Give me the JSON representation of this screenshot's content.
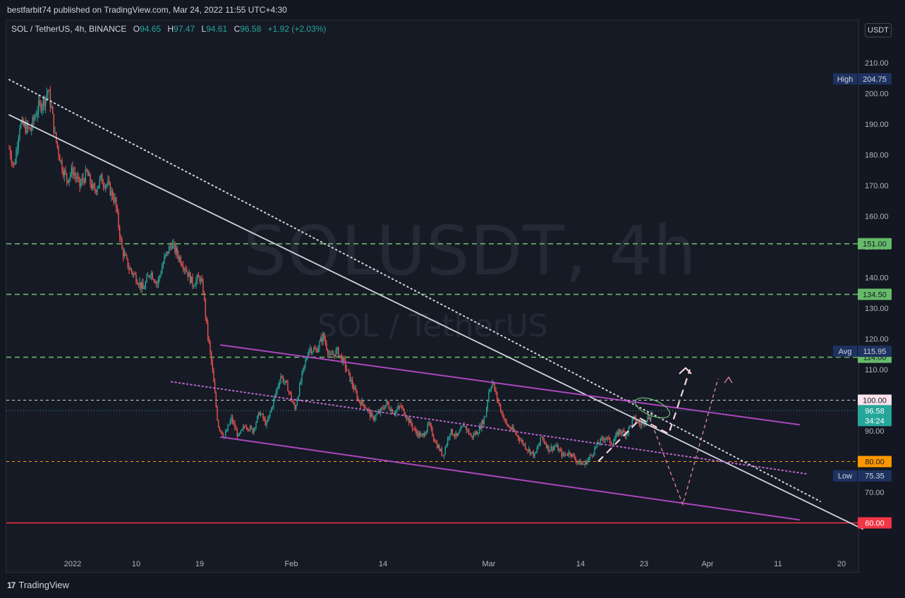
{
  "header": {
    "published": "bestfarbit74 published on TradingView.com, Mar 24, 2022 11:55 UTC+4:30"
  },
  "legend": {
    "symbol": "SOL / TetherUS, 4h, BINANCE",
    "o_label": "O",
    "o_value": "94.65",
    "h_label": "H",
    "h_value": "97.47",
    "l_label": "L",
    "l_value": "94.61",
    "c_label": "C",
    "c_value": "96.58",
    "change": "+1.92 (+2.03%)"
  },
  "watermark": {
    "main": "SOLUSDT, 4h",
    "sub": "SOL / TetherUS"
  },
  "currency_button": "USDT",
  "footer": {
    "brand": "TradingView",
    "logo_icon": "tradingview-logo-icon"
  },
  "colors": {
    "up": "#26a69a",
    "down": "#ef5350",
    "green_level": "#66bb6a",
    "purple": "#ab47bc",
    "orange": "#ff9800",
    "red_line": "#f23645",
    "white_line": "#d1d4dc"
  },
  "chart_data": {
    "type": "candlestick",
    "title": "",
    "ylim": [
      50,
      220
    ],
    "y_ticks": [
      "70.00",
      "80.00",
      "90.00",
      "100.00",
      "110.00",
      "120.00",
      "130.00",
      "140.00",
      "150.00",
      "160.00",
      "170.00",
      "180.00",
      "190.00",
      "200.00",
      "210.00"
    ],
    "x_ticks": [
      {
        "label": "2022",
        "day": 0
      },
      {
        "label": "10",
        "day": 9
      },
      {
        "label": "19",
        "day": 18
      },
      {
        "label": "Feb",
        "day": 31
      },
      {
        "label": "14",
        "day": 44
      },
      {
        "label": "Mar",
        "day": 59
      },
      {
        "label": "14",
        "day": 72
      },
      {
        "label": "23",
        "day": 81
      },
      {
        "label": "Apr",
        "day": 90
      },
      {
        "label": "11",
        "day": 100
      },
      {
        "label": "20",
        "day": 109
      }
    ],
    "close_path": [
      [
        -9,
        182
      ],
      [
        -8.3,
        176
      ],
      [
        -7.5,
        190
      ],
      [
        -6,
        188
      ],
      [
        -5,
        195
      ],
      [
        -4,
        198
      ],
      [
        -3.5,
        201
      ],
      [
        -3,
        195
      ],
      [
        -2.5,
        186
      ],
      [
        -1.5,
        176
      ],
      [
        -0.8,
        172
      ],
      [
        0,
        175
      ],
      [
        1,
        170
      ],
      [
        2,
        174
      ],
      [
        3,
        168
      ],
      [
        4,
        172
      ],
      [
        5,
        170
      ],
      [
        6,
        165
      ],
      [
        7,
        149
      ],
      [
        8,
        143
      ],
      [
        9,
        140
      ],
      [
        10,
        136
      ],
      [
        11,
        142
      ],
      [
        12,
        138
      ],
      [
        13,
        146
      ],
      [
        14,
        151
      ],
      [
        15,
        147
      ],
      [
        16,
        143
      ],
      [
        17,
        138
      ],
      [
        18,
        140
      ],
      [
        18.5,
        136
      ],
      [
        19,
        124
      ],
      [
        19.8,
        110
      ],
      [
        20.6,
        92
      ],
      [
        21.5,
        88
      ],
      [
        22.5,
        94
      ],
      [
        23.5,
        88
      ],
      [
        24.5,
        92
      ],
      [
        25.5,
        90
      ],
      [
        26.5,
        96
      ],
      [
        27.5,
        92
      ],
      [
        28.5,
        100
      ],
      [
        29.5,
        108
      ],
      [
        30.5,
        104
      ],
      [
        31.5,
        97
      ],
      [
        32.5,
        108
      ],
      [
        33.5,
        117
      ],
      [
        34.5,
        116
      ],
      [
        35.5,
        121
      ],
      [
        36.5,
        114
      ],
      [
        37.5,
        116
      ],
      [
        38.5,
        112
      ],
      [
        39.5,
        106
      ],
      [
        40.5,
        100
      ],
      [
        41.5,
        98
      ],
      [
        42.5,
        94
      ],
      [
        43.5,
        96
      ],
      [
        44.5,
        99
      ],
      [
        45.5,
        96
      ],
      [
        46.5,
        98
      ],
      [
        47.5,
        94
      ],
      [
        48.5,
        90
      ],
      [
        49.5,
        88
      ],
      [
        50.5,
        92
      ],
      [
        51.5,
        86
      ],
      [
        52.5,
        82
      ],
      [
        53.5,
        90
      ],
      [
        54.5,
        88
      ],
      [
        55.5,
        92
      ],
      [
        56.5,
        88
      ],
      [
        57.5,
        90
      ],
      [
        58.5,
        95
      ],
      [
        59,
        103
      ],
      [
        59.5,
        106
      ],
      [
        60.5,
        98
      ],
      [
        61.5,
        92
      ],
      [
        62.5,
        90
      ],
      [
        63.5,
        87
      ],
      [
        64.5,
        84
      ],
      [
        65.5,
        82
      ],
      [
        66.5,
        88
      ],
      [
        67.5,
        84
      ],
      [
        68.5,
        85
      ],
      [
        69.5,
        82
      ],
      [
        70.5,
        83
      ],
      [
        71.5,
        80
      ],
      [
        72.5,
        79
      ],
      [
        73.5,
        82
      ],
      [
        74.5,
        86
      ],
      [
        75.5,
        88
      ],
      [
        76.5,
        86
      ],
      [
        77.5,
        90
      ],
      [
        78.5,
        89
      ],
      [
        79.5,
        94
      ],
      [
        80.5,
        92
      ],
      [
        81.5,
        94
      ],
      [
        82.3,
        96.58
      ]
    ],
    "high": {
      "label": "High",
      "value": 204.75
    },
    "low": {
      "label": "Low",
      "value": 75.35
    },
    "avg": {
      "label": "Avg",
      "value": 115.95
    },
    "last": {
      "value": 96.58,
      "timer": "34:24"
    },
    "horizontal_levels": [
      {
        "value": 151.0,
        "label": "151.00",
        "style": "green-dashed"
      },
      {
        "value": 134.5,
        "label": "134.50",
        "style": "green-dashed"
      },
      {
        "value": 114.0,
        "label": "114.00",
        "style": "green-dashed"
      },
      {
        "value": 100.0,
        "label": "100.00",
        "style": "white-dashed"
      },
      {
        "value": 80.0,
        "label": "80.00",
        "style": "orange-dashed"
      },
      {
        "value": 60.0,
        "label": "60.00",
        "style": "red-solid"
      }
    ],
    "trendlines": [
      {
        "name": "white-solid",
        "from": [
          -9,
          193
        ],
        "to": [
          112,
          58
        ]
      },
      {
        "name": "white-dotted",
        "from": [
          -9,
          204.5
        ],
        "to": [
          106,
          67
        ]
      },
      {
        "name": "purple-upper",
        "from": [
          21,
          118
        ],
        "to": [
          103,
          92
        ]
      },
      {
        "name": "purple-lower",
        "from": [
          21,
          88
        ],
        "to": [
          103,
          61
        ]
      },
      {
        "name": "purple-dotted",
        "from": [
          14,
          106
        ],
        "to": [
          104,
          76
        ]
      }
    ],
    "projections": [
      {
        "name": "pink-dashed-up",
        "points": [
          [
            74.5,
            80
          ],
          [
            80.5,
            94
          ],
          [
            84.5,
            89
          ],
          [
            87.5,
            110
          ]
        ]
      },
      {
        "name": "pink-dashed-down-up",
        "points": [
          [
            81.5,
            96
          ],
          [
            86.5,
            66
          ],
          [
            91.5,
            107
          ]
        ]
      }
    ]
  }
}
